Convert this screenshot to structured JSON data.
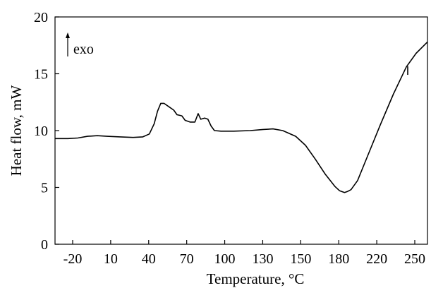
{
  "chart_data": {
    "type": "line",
    "title": "",
    "xlabel": "Temperature, °C",
    "ylabel": "Heat flow, mW",
    "ylim": [
      0,
      20
    ],
    "x_tick_labels": [
      "-20",
      "10",
      "40",
      "70",
      "100",
      "130",
      "150",
      "180",
      "220",
      "250"
    ],
    "y_tick_labels": [
      "0",
      "5",
      "10",
      "15",
      "20"
    ],
    "y_ticks": [
      0,
      5,
      10,
      15,
      20
    ],
    "annotation": "exo",
    "grid": false,
    "legend": "none",
    "series": [
      {
        "values": [
          [
            0,
            9.3
          ],
          [
            0.04,
            9.3
          ],
          [
            0.07,
            9.35
          ],
          [
            0.1,
            9.5
          ],
          [
            0.13,
            9.55
          ],
          [
            0.16,
            9.5
          ],
          [
            0.2,
            9.45
          ],
          [
            0.24,
            9.4
          ],
          [
            0.27,
            9.45
          ],
          [
            0.29,
            9.7
          ],
          [
            0.305,
            10.6
          ],
          [
            0.315,
            11.7
          ],
          [
            0.325,
            12.4
          ],
          [
            0.335,
            12.4
          ],
          [
            0.35,
            12.1
          ],
          [
            0.365,
            11.8
          ],
          [
            0.375,
            11.4
          ],
          [
            0.39,
            11.3
          ],
          [
            0.4,
            10.9
          ],
          [
            0.415,
            10.75
          ],
          [
            0.43,
            10.75
          ],
          [
            0.44,
            11.5
          ],
          [
            0.448,
            11.0
          ],
          [
            0.46,
            11.1
          ],
          [
            0.47,
            11.0
          ],
          [
            0.48,
            10.4
          ],
          [
            0.49,
            10.0
          ],
          [
            0.51,
            9.95
          ],
          [
            0.55,
            9.95
          ],
          [
            0.6,
            10.0
          ],
          [
            0.64,
            10.1
          ],
          [
            0.67,
            10.15
          ],
          [
            0.7,
            10.0
          ],
          [
            0.74,
            9.5
          ],
          [
            0.77,
            8.7
          ],
          [
            0.8,
            7.5
          ],
          [
            0.83,
            6.2
          ],
          [
            0.86,
            5.1
          ],
          [
            0.875,
            4.7
          ],
          [
            0.89,
            4.55
          ],
          [
            0.9,
            4.65
          ],
          [
            0.91,
            4.8
          ],
          [
            0.93,
            5.6
          ],
          [
            0.96,
            7.7
          ],
          [
            1.0,
            10.5
          ],
          [
            1.04,
            13.2
          ],
          [
            1.08,
            15.6
          ],
          [
            1.11,
            16.8
          ],
          [
            1.145,
            17.8
          ]
        ]
      }
    ]
  }
}
